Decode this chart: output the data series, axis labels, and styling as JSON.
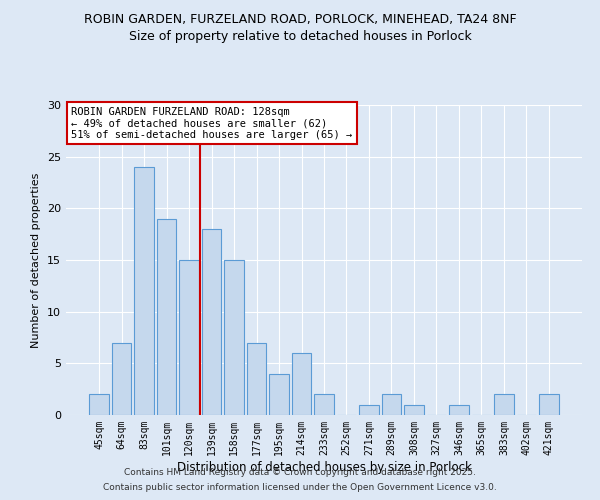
{
  "title1": "ROBIN GARDEN, FURZELAND ROAD, PORLOCK, MINEHEAD, TA24 8NF",
  "title2": "Size of property relative to detached houses in Porlock",
  "xlabel": "Distribution of detached houses by size in Porlock",
  "ylabel": "Number of detached properties",
  "categories": [
    "45sqm",
    "64sqm",
    "83sqm",
    "101sqm",
    "120sqm",
    "139sqm",
    "158sqm",
    "177sqm",
    "195sqm",
    "214sqm",
    "233sqm",
    "252sqm",
    "271sqm",
    "289sqm",
    "308sqm",
    "327sqm",
    "346sqm",
    "365sqm",
    "383sqm",
    "402sqm",
    "421sqm"
  ],
  "values": [
    2,
    7,
    24,
    19,
    15,
    18,
    15,
    7,
    4,
    6,
    2,
    0,
    1,
    2,
    1,
    0,
    1,
    0,
    2,
    0,
    2
  ],
  "bar_color": "#c5d8ed",
  "bar_edgecolor": "#5b9bd5",
  "ref_line_x": 4.5,
  "ref_line_color": "#cc0000",
  "annotation_text": "ROBIN GARDEN FURZELAND ROAD: 128sqm\n← 49% of detached houses are smaller (62)\n51% of semi-detached houses are larger (65) →",
  "annotation_box_color": "#ffffff",
  "annotation_box_edgecolor": "#cc0000",
  "ylim": [
    0,
    30
  ],
  "yticks": [
    0,
    5,
    10,
    15,
    20,
    25,
    30
  ],
  "background_color": "#dde8f5",
  "footer1": "Contains HM Land Registry data © Crown copyright and database right 2025.",
  "footer2": "Contains public sector information licensed under the Open Government Licence v3.0.",
  "title_fontsize": 9,
  "annotation_fontsize": 7.5,
  "xlabel_fontsize": 8.5,
  "ylabel_fontsize": 8,
  "footer_fontsize": 6.5,
  "tick_fontsize": 7,
  "ytick_fontsize": 8
}
